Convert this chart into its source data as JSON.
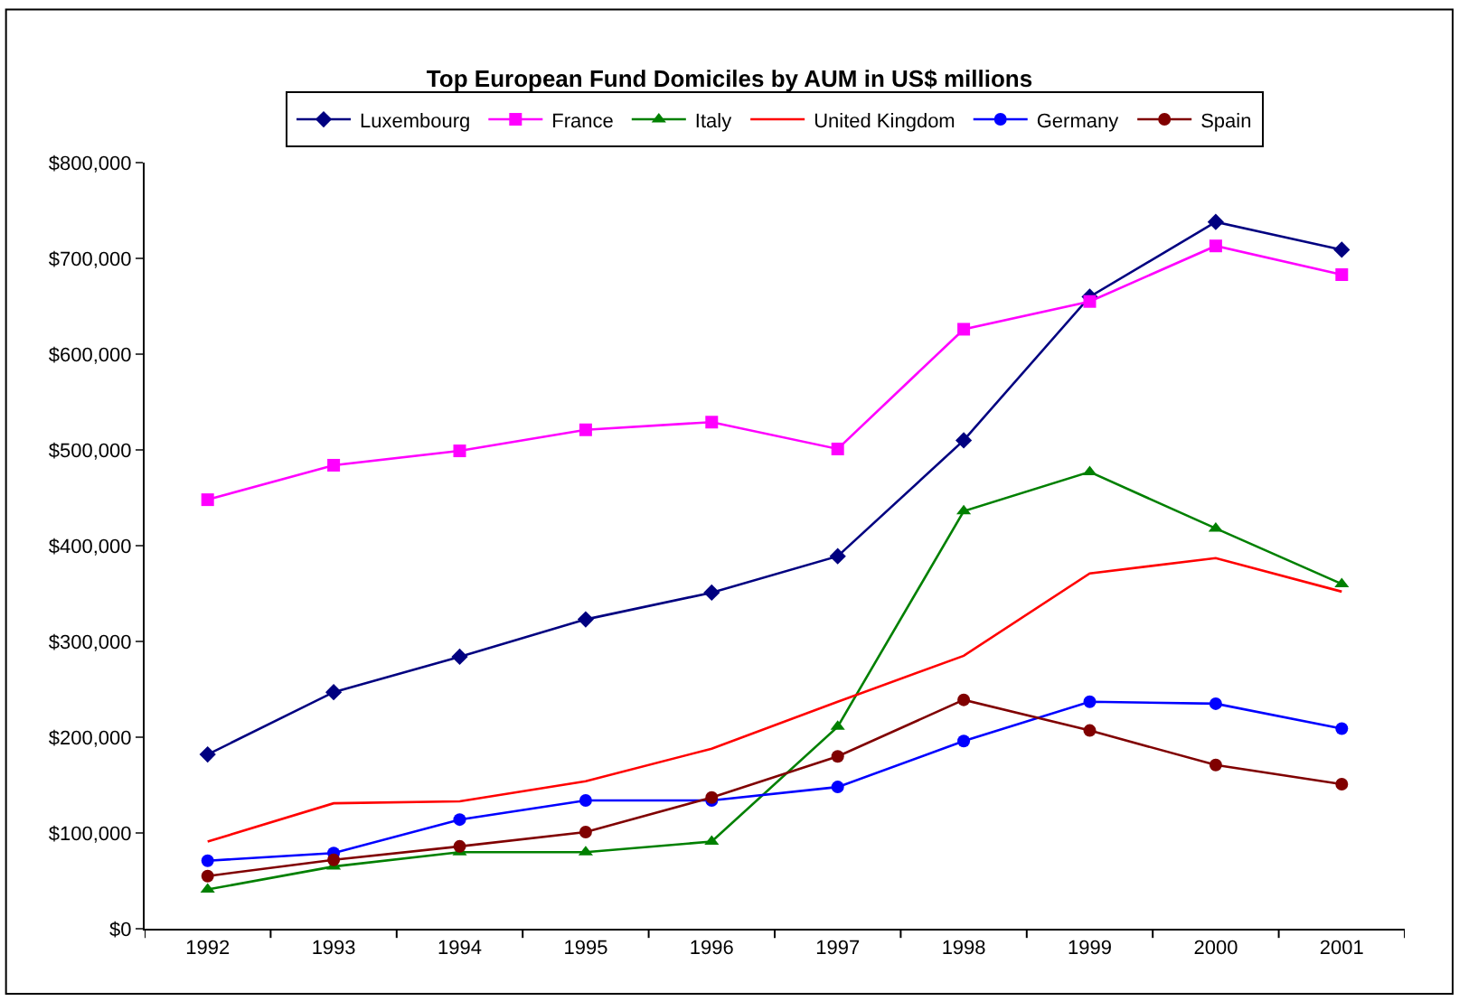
{
  "chart_data": {
    "type": "line",
    "title": "Top European Fund Domiciles by AUM in US$ millions",
    "categories": [
      "1992",
      "1993",
      "1994",
      "1995",
      "1996",
      "1997",
      "1998",
      "1999",
      "2000",
      "2001"
    ],
    "series": [
      {
        "name": "Luxembourg",
        "color": "#000080",
        "marker": "diamond",
        "values": [
          182000,
          247000,
          284000,
          323000,
          351000,
          389000,
          510000,
          660000,
          738000,
          709000
        ]
      },
      {
        "name": "France",
        "color": "#ff00ff",
        "marker": "square",
        "values": [
          448000,
          484000,
          499000,
          521000,
          529000,
          501000,
          626000,
          655000,
          713000,
          683000
        ]
      },
      {
        "name": "Italy",
        "color": "#008000",
        "marker": "triangle",
        "values": [
          41000,
          65000,
          80000,
          80000,
          91000,
          211000,
          436000,
          477000,
          418000,
          360000
        ]
      },
      {
        "name": "United Kingdom",
        "color": "#ff0000",
        "marker": "none",
        "values": [
          91000,
          131000,
          133000,
          154000,
          188000,
          237000,
          285000,
          371000,
          387000,
          352000
        ]
      },
      {
        "name": "Germany",
        "color": "#0000ff",
        "marker": "circle",
        "values": [
          71000,
          79000,
          114000,
          134000,
          134000,
          148000,
          196000,
          237000,
          235000,
          209000
        ]
      },
      {
        "name": "Spain",
        "color": "#800000",
        "marker": "circle",
        "values": [
          55000,
          72000,
          86000,
          101000,
          137000,
          180000,
          239000,
          207000,
          171000,
          151000
        ]
      }
    ],
    "ylim": [
      0,
      800000
    ],
    "yticks": [
      {
        "value": 0,
        "label": "$0"
      },
      {
        "value": 100000,
        "label": "$100,000"
      },
      {
        "value": 200000,
        "label": "$200,000"
      },
      {
        "value": 300000,
        "label": "$300,000"
      },
      {
        "value": 400000,
        "label": "$400,000"
      },
      {
        "value": 500000,
        "label": "$500,000"
      },
      {
        "value": 600000,
        "label": "$600,000"
      },
      {
        "value": 700000,
        "label": "$700,000"
      },
      {
        "value": 800000,
        "label": "$800,000"
      }
    ],
    "legend": "top",
    "line_style": "solid"
  }
}
